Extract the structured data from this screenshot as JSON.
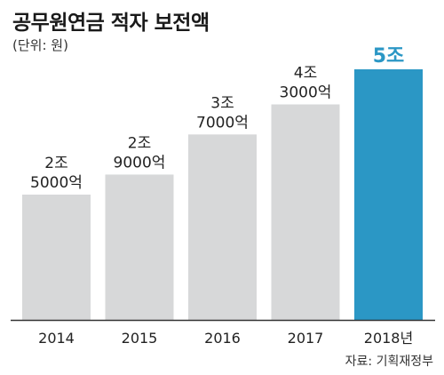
{
  "title": "공무원연금 적자 보전액",
  "unit": "(단위: 원)",
  "source": "자료: 기획재정부",
  "colors": {
    "bar": "#d7d8d9",
    "highlight": "#2b97c5",
    "axis": "#333333"
  },
  "chart_data": {
    "type": "bar",
    "categories": [
      "2014",
      "2015",
      "2016",
      "2017",
      "2018년"
    ],
    "values": [
      25000,
      29000,
      37000,
      43000,
      50000
    ],
    "value_unit": "억원",
    "data_labels": [
      [
        "2조",
        "5000억"
      ],
      [
        "2조",
        "9000억"
      ],
      [
        "3조",
        "7000억"
      ],
      [
        "4조",
        "3000억"
      ],
      [
        "5조"
      ]
    ],
    "highlight_index": 4,
    "title": "공무원연금 적자 보전액",
    "xlabel": "",
    "ylabel": "",
    "ylim": [
      0,
      50000
    ],
    "grid": false,
    "legend": "none"
  }
}
